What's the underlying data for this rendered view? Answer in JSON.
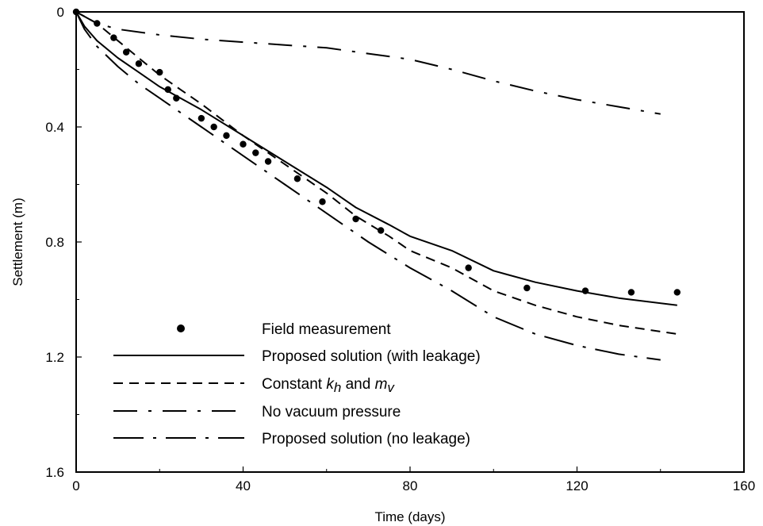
{
  "chart_data": {
    "type": "line",
    "title": "",
    "xlabel": "Time (days)",
    "ylabel": "Settlement (m)",
    "xlim": [
      0,
      160
    ],
    "ylim": [
      0,
      1.6
    ],
    "y_inverted": true,
    "x_ticks": [
      "0",
      "40",
      "80",
      "120",
      "160"
    ],
    "y_ticks": [
      "0",
      "0.4",
      "0.8",
      "1.2",
      "1.6"
    ],
    "grid": false,
    "legend_position": "bottom-left, inside plot",
    "series": [
      {
        "name": "Field measurement",
        "style": "markers",
        "color": "#000000",
        "x": [
          0,
          5,
          9,
          12,
          15,
          20,
          22,
          24,
          30,
          33,
          36,
          40,
          43,
          46,
          53,
          59,
          67,
          73,
          94,
          108,
          122,
          133,
          144
        ],
        "y": [
          0,
          0.04,
          0.09,
          0.14,
          0.18,
          0.21,
          0.27,
          0.3,
          0.37,
          0.4,
          0.43,
          0.46,
          0.49,
          0.52,
          0.58,
          0.66,
          0.72,
          0.76,
          0.89,
          0.96,
          0.97,
          0.975,
          0.975
        ]
      },
      {
        "name": "Proposed solution (with leakage)",
        "style": "solid",
        "color": "#000000",
        "x": [
          0,
          2,
          5,
          10,
          15,
          20,
          25,
          30,
          40,
          50,
          60,
          67,
          75,
          80,
          90,
          100,
          110,
          120,
          130,
          144
        ],
        "y": [
          0,
          0.05,
          0.1,
          0.16,
          0.21,
          0.26,
          0.3,
          0.34,
          0.43,
          0.52,
          0.61,
          0.68,
          0.74,
          0.78,
          0.83,
          0.9,
          0.94,
          0.97,
          0.995,
          1.02
        ]
      },
      {
        "name": "Constant kh and mv",
        "style": "dashed",
        "color": "#000000",
        "x": [
          0,
          5,
          10,
          15,
          20,
          25,
          30,
          40,
          50,
          60,
          67,
          75,
          80,
          90,
          100,
          110,
          120,
          130,
          144
        ],
        "y": [
          0,
          0.04,
          0.1,
          0.16,
          0.22,
          0.27,
          0.32,
          0.43,
          0.53,
          0.63,
          0.71,
          0.78,
          0.83,
          0.89,
          0.97,
          1.02,
          1.06,
          1.09,
          1.12
        ]
      },
      {
        "name": "No vacuum pressure",
        "style": "dash-dot",
        "color": "#000000",
        "x": [
          0,
          5,
          10,
          20,
          30,
          40,
          50,
          60,
          70,
          80,
          90,
          100,
          110,
          120,
          130,
          140
        ],
        "y": [
          0,
          0.04,
          0.06,
          0.08,
          0.095,
          0.105,
          0.115,
          0.125,
          0.145,
          0.165,
          0.2,
          0.24,
          0.275,
          0.305,
          0.33,
          0.355
        ]
      },
      {
        "name": "Proposed solution (no leakage)",
        "style": "long-dash-short-dash",
        "color": "#000000",
        "x": [
          0,
          2,
          5,
          10,
          15,
          20,
          25,
          30,
          40,
          50,
          60,
          70,
          80,
          90,
          100,
          110,
          120,
          130,
          140
        ],
        "y": [
          0,
          0.06,
          0.12,
          0.19,
          0.25,
          0.3,
          0.35,
          0.4,
          0.5,
          0.6,
          0.7,
          0.8,
          0.89,
          0.97,
          1.06,
          1.12,
          1.16,
          1.19,
          1.21
        ]
      }
    ],
    "legend": [
      {
        "parts": [
          {
            "t": "Field measurement"
          }
        ]
      },
      {
        "parts": [
          {
            "t": "Proposed solution (with leakage)"
          }
        ]
      },
      {
        "parts": [
          {
            "t": "Constant "
          },
          {
            "t": "k",
            "i": true
          },
          {
            "t": "h",
            "i": true,
            "sub": true
          },
          {
            "t": " and "
          },
          {
            "t": "m",
            "i": true
          },
          {
            "t": "v",
            "i": true,
            "sub": true
          }
        ]
      },
      {
        "parts": [
          {
            "t": "No vacuum pressure"
          }
        ]
      },
      {
        "parts": [
          {
            "t": "Proposed solution (no leakage)"
          }
        ]
      }
    ]
  }
}
